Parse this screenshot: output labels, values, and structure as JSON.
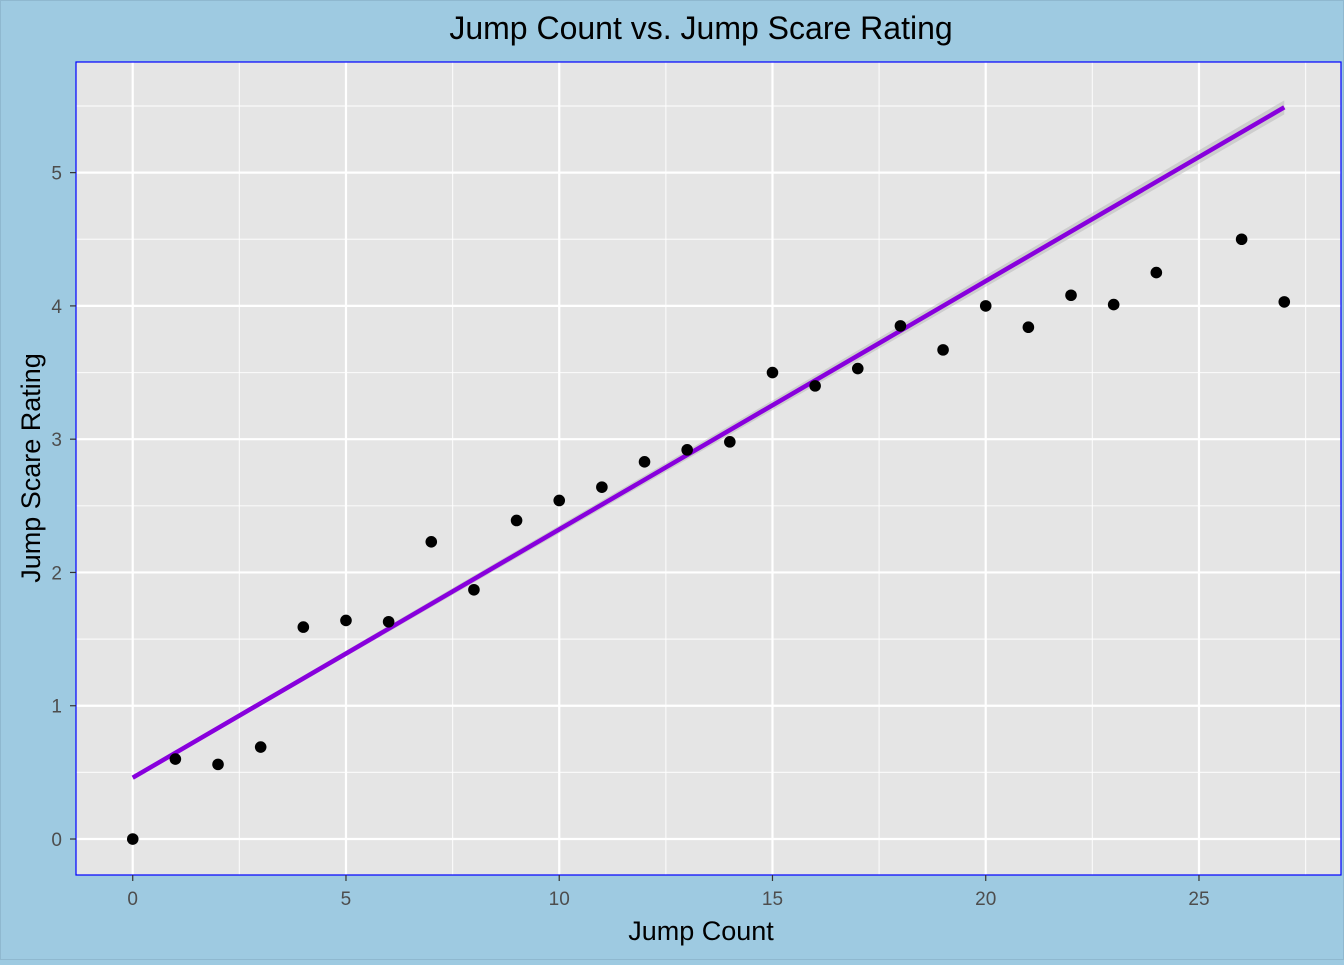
{
  "chart_data": {
    "type": "scatter",
    "title": "Jump Count vs. Jump Scare Rating",
    "xlabel": "Jump Count",
    "ylabel": "Jump Scare Rating",
    "xlim": [
      -1.33,
      28.33
    ],
    "ylim": [
      -0.27,
      5.83
    ],
    "x_ticks": [
      0,
      5,
      10,
      15,
      20,
      25
    ],
    "x_tick_labels": [
      "0",
      "5",
      "10",
      "15",
      "20",
      "25"
    ],
    "y_ticks": [
      0,
      1,
      2,
      3,
      4,
      5
    ],
    "y_tick_labels": [
      "0",
      "1",
      "2",
      "3",
      "4",
      "5"
    ],
    "grid": true,
    "legend": "none",
    "points": {
      "x": [
        0,
        1,
        2,
        3,
        4,
        5,
        6,
        7,
        8,
        9,
        10,
        11,
        12,
        13,
        14,
        15,
        16,
        17,
        18,
        19,
        20,
        21,
        22,
        23,
        24,
        26,
        27
      ],
      "y": [
        0.0,
        0.6,
        0.56,
        0.69,
        1.59,
        1.64,
        1.63,
        2.23,
        1.87,
        2.39,
        2.54,
        2.64,
        2.83,
        2.92,
        2.98,
        3.5,
        3.4,
        3.53,
        3.85,
        3.67,
        4.0,
        3.84,
        4.08,
        4.01,
        4.25,
        4.5,
        4.03
      ]
    },
    "trend_line": {
      "x": [
        0,
        27
      ],
      "y": [
        0.46,
        5.49
      ]
    },
    "colors": {
      "background": "#9ecae1",
      "panel": "#e5e5e5",
      "panel_border": "#0000ff",
      "grid": "#ffffff",
      "points": "#000000",
      "trend_line": "#8800dd",
      "trend_band": "#b0b0b0"
    }
  }
}
